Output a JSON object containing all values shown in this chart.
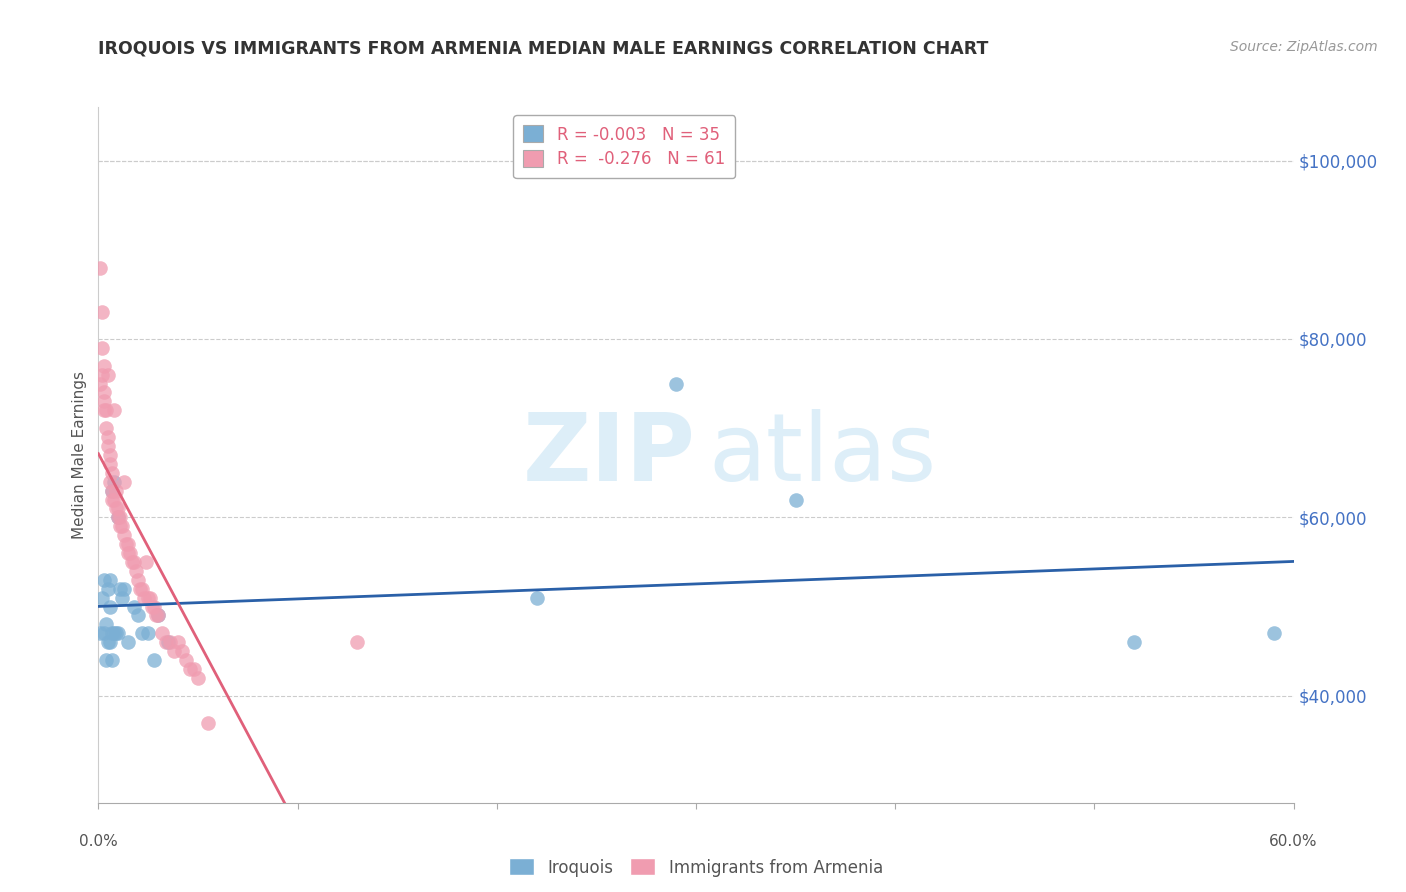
{
  "title": "IROQUOIS VS IMMIGRANTS FROM ARMENIA MEDIAN MALE EARNINGS CORRELATION CHART",
  "source": "Source: ZipAtlas.com",
  "ylabel": "Median Male Earnings",
  "yticks": [
    40000,
    60000,
    80000,
    100000
  ],
  "ytick_labels": [
    "$40,000",
    "$60,000",
    "$80,000",
    "$100,000"
  ],
  "iroquois_color": "#7bafd4",
  "armenia_color": "#f09cb0",
  "iroquois_line_color": "#2a60a8",
  "armenia_line_color": "#e0607a",
  "background_color": "#ffffff",
  "xlim": [
    0,
    0.6
  ],
  "ylim": [
    28000,
    106000
  ],
  "legend_r_iroquois": "-0.003",
  "legend_n_iroquois": "35",
  "legend_r_armenia": "-0.276",
  "legend_n_armenia": "61",
  "iroquois_x": [
    0.001,
    0.002,
    0.003,
    0.003,
    0.004,
    0.004,
    0.005,
    0.005,
    0.006,
    0.006,
    0.006,
    0.007,
    0.007,
    0.007,
    0.008,
    0.008,
    0.009,
    0.01,
    0.01,
    0.011,
    0.012,
    0.013,
    0.015,
    0.018,
    0.02,
    0.022,
    0.025,
    0.028,
    0.03,
    0.035,
    0.22,
    0.29,
    0.35,
    0.52,
    0.59
  ],
  "iroquois_y": [
    47000,
    51000,
    47000,
    53000,
    48000,
    44000,
    52000,
    46000,
    53000,
    46000,
    50000,
    63000,
    47000,
    44000,
    64000,
    47000,
    47000,
    60000,
    47000,
    52000,
    51000,
    52000,
    46000,
    50000,
    49000,
    47000,
    47000,
    44000,
    49000,
    46000,
    51000,
    75000,
    62000,
    46000,
    47000
  ],
  "armenia_x": [
    0.001,
    0.001,
    0.002,
    0.002,
    0.002,
    0.003,
    0.003,
    0.003,
    0.003,
    0.004,
    0.004,
    0.005,
    0.005,
    0.005,
    0.006,
    0.006,
    0.006,
    0.007,
    0.007,
    0.007,
    0.008,
    0.008,
    0.009,
    0.009,
    0.01,
    0.01,
    0.011,
    0.011,
    0.012,
    0.013,
    0.013,
    0.014,
    0.015,
    0.015,
    0.016,
    0.017,
    0.018,
    0.019,
    0.02,
    0.021,
    0.022,
    0.023,
    0.024,
    0.025,
    0.026,
    0.027,
    0.028,
    0.029,
    0.03,
    0.032,
    0.034,
    0.036,
    0.038,
    0.04,
    0.042,
    0.044,
    0.046,
    0.048,
    0.05,
    0.055,
    0.13
  ],
  "armenia_y": [
    88000,
    75000,
    83000,
    79000,
    76000,
    77000,
    74000,
    73000,
    72000,
    72000,
    70000,
    76000,
    69000,
    68000,
    67000,
    66000,
    64000,
    65000,
    63000,
    62000,
    72000,
    62000,
    63000,
    61000,
    61000,
    60000,
    60000,
    59000,
    59000,
    64000,
    58000,
    57000,
    57000,
    56000,
    56000,
    55000,
    55000,
    54000,
    53000,
    52000,
    52000,
    51000,
    55000,
    51000,
    51000,
    50000,
    50000,
    49000,
    49000,
    47000,
    46000,
    46000,
    45000,
    46000,
    45000,
    44000,
    43000,
    43000,
    42000,
    37000,
    46000
  ]
}
